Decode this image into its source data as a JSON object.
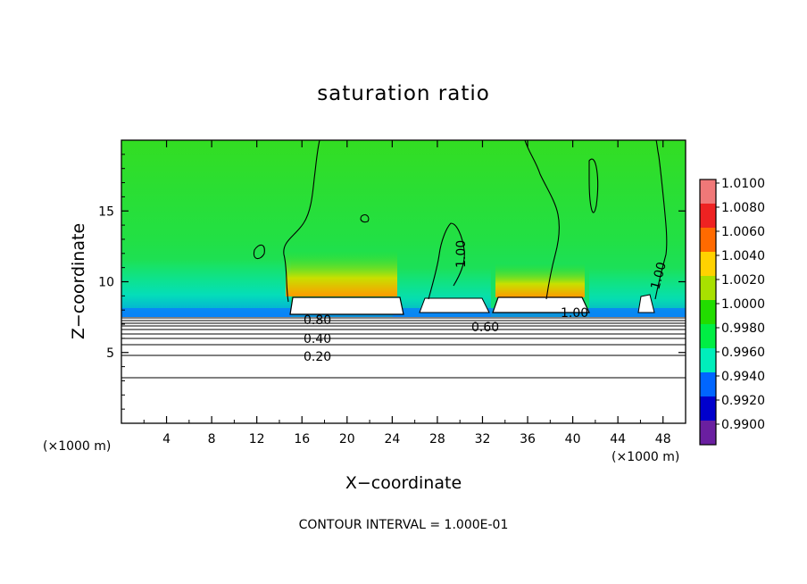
{
  "chart_data": {
    "type": "contourf",
    "title": "saturation ratio",
    "xlabel": "X−coordinate",
    "ylabel": "Z−coordinate",
    "x_unit_label": "(×1000 m)",
    "y_unit_label": "(×1000 m)",
    "xlim": [
      0,
      50
    ],
    "ylim": [
      0,
      20
    ],
    "x_ticks": [
      4,
      8,
      12,
      16,
      20,
      24,
      28,
      32,
      36,
      40,
      44,
      48
    ],
    "y_ticks": [
      5,
      10,
      15
    ],
    "colorbar": {
      "levels": [
        "1.0100",
        "1.0080",
        "1.0060",
        "1.0040",
        "1.0020",
        "1.0000",
        "0.9980",
        "0.9960",
        "0.9940",
        "0.9920",
        "0.9900"
      ],
      "colors": [
        "#f07878",
        "#ee2222",
        "#ff6a00",
        "#ffd200",
        "#a8e000",
        "#22dd00",
        "#00ee44",
        "#00eebb",
        "#0066ff",
        "#0000cc",
        "#6a1fa0"
      ]
    },
    "contour_labels": [
      "0.80",
      "0.40",
      "0.20",
      "0.60",
      "1.00",
      "1.00",
      "1.00"
    ],
    "contour_interval_text": "CONTOUR INTERVAL = 1.000E-01"
  }
}
